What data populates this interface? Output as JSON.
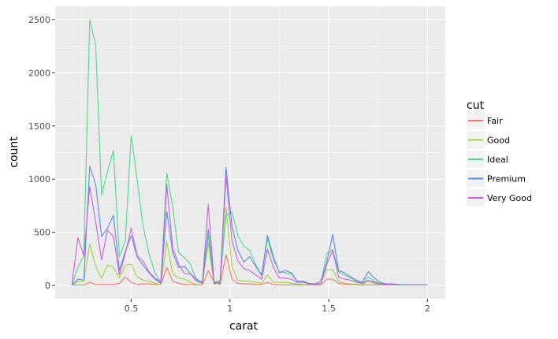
{
  "chart_data": {
    "type": "line",
    "xlabel": "carat",
    "ylabel": "count",
    "xlim": [
      0.2,
      2.01
    ],
    "ylim": [
      0,
      2500
    ],
    "x_ticks": [
      0.5,
      1,
      1.5,
      2
    ],
    "x_tick_labels": [
      "0.5",
      "1",
      "1.5",
      "2"
    ],
    "y_ticks": [
      0,
      500,
      1000,
      1500,
      2000,
      2500
    ],
    "y_tick_labels": [
      "0",
      "500",
      "1000",
      "1500",
      "2000",
      "2500"
    ],
    "grid": true,
    "legend": {
      "title": "cut",
      "placement": "right"
    },
    "x": [
      0.2,
      0.23,
      0.26,
      0.29,
      0.32,
      0.35,
      0.38,
      0.41,
      0.44,
      0.47,
      0.5,
      0.53,
      0.56,
      0.59,
      0.62,
      0.65,
      0.68,
      0.71,
      0.74,
      0.77,
      0.8,
      0.83,
      0.86,
      0.89,
      0.92,
      0.95,
      0.98,
      1.01,
      1.04,
      1.07,
      1.1,
      1.13,
      1.16,
      1.19,
      1.22,
      1.25,
      1.28,
      1.31,
      1.34,
      1.37,
      1.4,
      1.43,
      1.46,
      1.49,
      1.52,
      1.55,
      1.58,
      1.61,
      1.64,
      1.67,
      1.7,
      1.73,
      1.76,
      1.79,
      1.82,
      1.85,
      1.88,
      1.91,
      1.94,
      1.97,
      2.0
    ],
    "series": [
      {
        "name": "Fair",
        "color": "#F8766D",
        "values": [
          5,
          5,
          5,
          30,
          10,
          10,
          10,
          10,
          20,
          80,
          30,
          10,
          15,
          15,
          10,
          10,
          170,
          40,
          20,
          10,
          10,
          5,
          5,
          140,
          30,
          10,
          290,
          60,
          20,
          15,
          15,
          10,
          10,
          30,
          10,
          5,
          5,
          5,
          5,
          5,
          5,
          5,
          5,
          60,
          60,
          20,
          10,
          10,
          5,
          5,
          5,
          5,
          5,
          5,
          5,
          5,
          5,
          5,
          5,
          5,
          5
        ]
      },
      {
        "name": "Good",
        "color": "#A3D13C",
        "values": [
          5,
          40,
          40,
          390,
          180,
          70,
          190,
          170,
          70,
          190,
          200,
          80,
          50,
          40,
          20,
          10,
          410,
          110,
          70,
          60,
          30,
          10,
          5,
          400,
          10,
          40,
          740,
          180,
          50,
          40,
          40,
          30,
          20,
          100,
          30,
          30,
          30,
          20,
          15,
          10,
          10,
          10,
          20,
          150,
          150,
          40,
          20,
          15,
          10,
          10,
          40,
          20,
          10,
          5,
          5,
          5,
          5,
          5,
          5,
          5,
          5
        ]
      },
      {
        "name": "Ideal",
        "color": "#4DD98A",
        "values": [
          5,
          170,
          280,
          2500,
          2260,
          850,
          1070,
          1270,
          270,
          420,
          1410,
          990,
          560,
          300,
          120,
          30,
          1060,
          740,
          310,
          260,
          200,
          50,
          20,
          470,
          30,
          50,
          660,
          690,
          470,
          370,
          330,
          200,
          90,
          440,
          240,
          130,
          120,
          110,
          40,
          40,
          20,
          10,
          20,
          300,
          340,
          130,
          100,
          70,
          40,
          20,
          80,
          40,
          20,
          10,
          10,
          5,
          5,
          5,
          5,
          5,
          5
        ]
      },
      {
        "name": "Premium",
        "color": "#5C8AE6",
        "values": [
          5,
          60,
          50,
          1120,
          950,
          460,
          540,
          660,
          140,
          320,
          470,
          270,
          190,
          120,
          60,
          20,
          700,
          310,
          170,
          180,
          110,
          60,
          30,
          530,
          30,
          30,
          1110,
          560,
          330,
          220,
          270,
          180,
          100,
          470,
          270,
          120,
          140,
          120,
          40,
          40,
          20,
          15,
          40,
          220,
          480,
          140,
          120,
          80,
          50,
          30,
          130,
          70,
          30,
          15,
          15,
          10,
          5,
          5,
          5,
          5,
          5
        ]
      },
      {
        "name": "Very Good",
        "color": "#CC5DE0",
        "values": [
          5,
          450,
          280,
          930,
          600,
          240,
          520,
          460,
          100,
          300,
          540,
          280,
          230,
          130,
          70,
          30,
          950,
          350,
          200,
          110,
          110,
          40,
          20,
          760,
          20,
          20,
          1030,
          420,
          230,
          160,
          140,
          100,
          60,
          340,
          170,
          70,
          70,
          60,
          30,
          30,
          15,
          10,
          20,
          200,
          330,
          80,
          60,
          50,
          30,
          20,
          50,
          30,
          15,
          10,
          10,
          5,
          5,
          5,
          5,
          5,
          5
        ]
      }
    ]
  }
}
